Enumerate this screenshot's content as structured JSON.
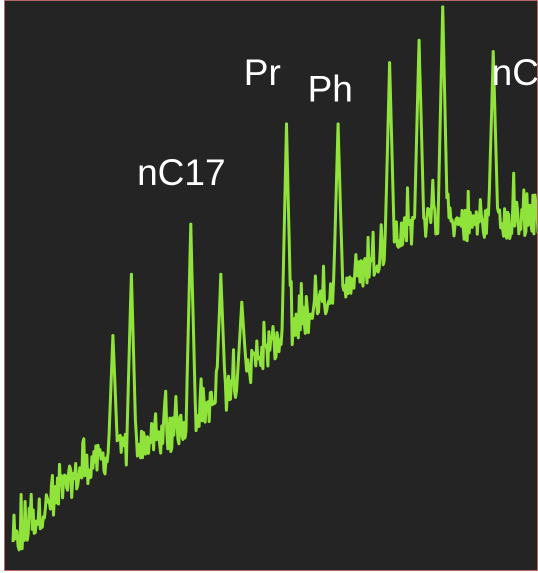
{
  "chart_data": {
    "type": "line",
    "title": "",
    "xlabel": "",
    "ylabel": "",
    "grid": false,
    "xlim": [
      0,
      100
    ],
    "ylim": [
      0,
      100
    ],
    "colors": {
      "trace": "#8fe33a",
      "background": "#242424",
      "frame": "#b56a6a",
      "label": "#ffffff"
    },
    "baseline": [
      [
        0,
        3
      ],
      [
        5,
        9
      ],
      [
        10,
        14
      ],
      [
        15,
        18
      ],
      [
        20,
        20
      ],
      [
        25,
        22
      ],
      [
        30,
        23
      ],
      [
        35,
        27
      ],
      [
        40,
        30
      ],
      [
        45,
        35
      ],
      [
        50,
        39
      ],
      [
        55,
        43
      ],
      [
        60,
        48
      ],
      [
        65,
        51
      ],
      [
        70,
        56
      ],
      [
        75,
        60
      ],
      [
        80,
        62
      ],
      [
        85,
        61
      ],
      [
        90,
        61
      ],
      [
        95,
        61
      ],
      [
        100,
        62
      ]
    ],
    "peaks": [
      {
        "x": 19.0,
        "y": 41
      },
      {
        "x": 22.5,
        "y": 52
      },
      {
        "x": 33.8,
        "y": 61
      },
      {
        "x": 39.5,
        "y": 52
      },
      {
        "x": 43.5,
        "y": 47
      },
      {
        "x": 52.0,
        "y": 79
      },
      {
        "x": 61.8,
        "y": 79
      },
      {
        "x": 71.6,
        "y": 90
      },
      {
        "x": 77.2,
        "y": 94
      },
      {
        "x": 81.7,
        "y": 100
      },
      {
        "x": 91.3,
        "y": 92
      }
    ],
    "annotations": [
      {
        "text": "nC17",
        "x": 32.0,
        "y": 68
      },
      {
        "text": "Pr",
        "x": 47.4,
        "y": 86
      },
      {
        "text": "Ph",
        "x": 60.3,
        "y": 83
      },
      {
        "text": "nC",
        "x": 95.5,
        "y": 86
      }
    ]
  }
}
